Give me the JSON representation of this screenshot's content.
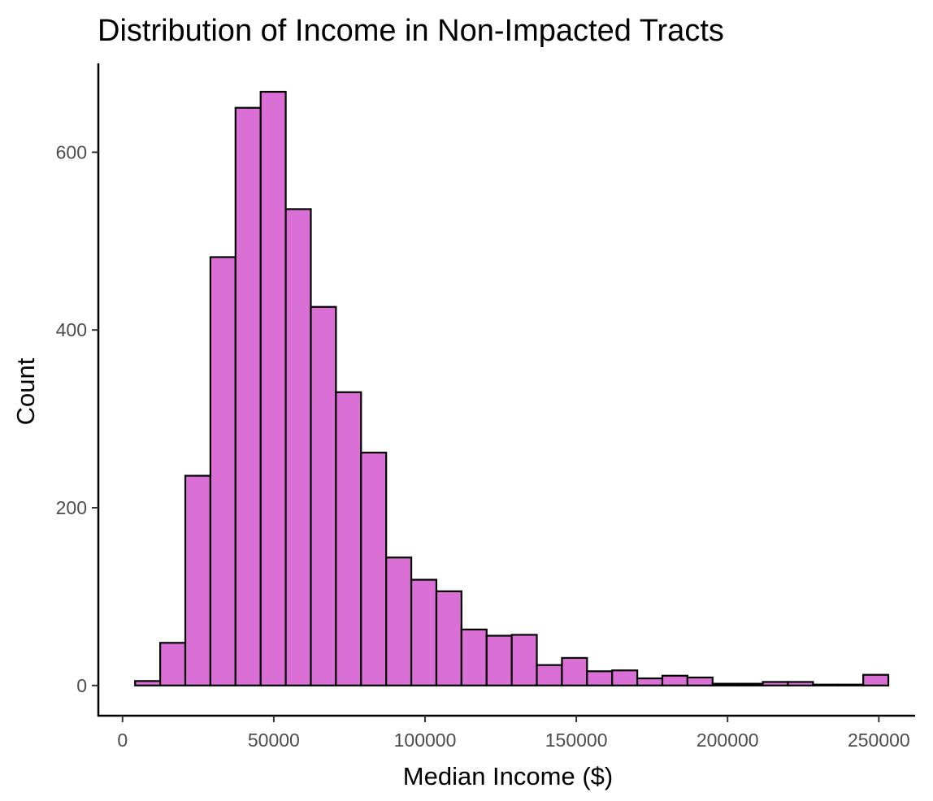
{
  "chart_data": {
    "type": "bar",
    "title": "Distribution of Income in Non-Impacted Tracts",
    "xlabel": "Median Income ($)",
    "ylabel": "Count",
    "bin_width": 8300,
    "bin_centers": [
      8300,
      16600,
      24900,
      33200,
      41500,
      49800,
      58100,
      66400,
      74700,
      83000,
      91300,
      99600,
      107900,
      116200,
      124500,
      132800,
      141100,
      149400,
      157700,
      166000,
      174300,
      182600,
      190900,
      199200,
      207500,
      215800,
      224100,
      232400,
      240700,
      249000
    ],
    "values": [
      5,
      48,
      236,
      482,
      650,
      668,
      536,
      426,
      330,
      262,
      144,
      119,
      106,
      63,
      56,
      57,
      23,
      31,
      16,
      17,
      8,
      11,
      9,
      2,
      2,
      4,
      4,
      1,
      1,
      12
    ],
    "fill_color": "#DA70D6",
    "edge_color": "#000000",
    "xlim": [
      -8000,
      262000
    ],
    "ylim": [
      -34,
      700
    ],
    "xticks": [
      0,
      50000,
      100000,
      150000,
      200000,
      250000
    ],
    "xtick_labels": [
      "0",
      "50000",
      "100000",
      "150000",
      "200000",
      "250000"
    ],
    "yticks": [
      0,
      200,
      400,
      600
    ],
    "ytick_labels": [
      "0",
      "200",
      "400",
      "600"
    ],
    "grid": false,
    "legend": "none"
  }
}
